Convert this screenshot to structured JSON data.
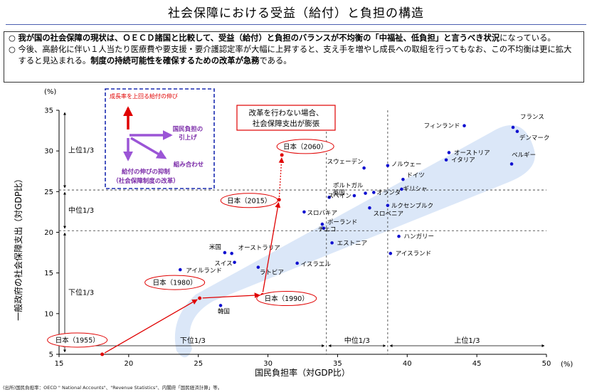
{
  "header": {
    "title": "社会保障における受益（給付）と負担の構造"
  },
  "summary": {
    "bullet": "○",
    "p1": [
      {
        "t": "我が国の社会保障の現状は、ＯＥＣＤ諸国と比較して、",
        "s": "hl"
      },
      {
        "t": "受益（給付）と負担のバランスが不均衡の「中福祉、低負担」と言うべき状況",
        "s": "hl"
      },
      {
        "t": "になっている。",
        "s": ""
      }
    ],
    "p2": [
      {
        "t": "今後、高齢化に伴い１人当たり医療費や要支援・要介護認定率が大幅に上昇すると、支え手を増やし成長への取組を行ってもなお、この不均衡は更に拡大すると見込まれる。",
        "s": ""
      },
      {
        "t": "制度の持続可能性を確保するための改革が急務",
        "s": "hl"
      },
      {
        "t": "である。",
        "s": ""
      }
    ]
  },
  "source_note": "(出所)国民負担率：OECD \" National Accounts\"、\"Revenue Statistics\"、内閣府「国民経済計算」等。",
  "chart_data": {
    "type": "scatter",
    "xlabel": "国民負担率（対GDP比）",
    "ylabel": "一般政府の社会保障支出（対GDP比）",
    "x_unit": "(%)",
    "y_unit": "(%)",
    "xlim": [
      15,
      50
    ],
    "ylim": [
      5,
      35
    ],
    "x_ticks": [
      15,
      20,
      25,
      30,
      35,
      40,
      45,
      50
    ],
    "y_ticks": [
      5,
      10,
      15,
      20,
      25,
      30,
      35
    ],
    "x_tercile_splits": [
      34.2,
      38.6
    ],
    "y_tercile_splits": [
      25.2,
      20.2
    ],
    "x_tercile_labels": [
      "下位1/3",
      "中位1/3",
      "上位1/3"
    ],
    "y_tercile_labels": [
      "上位1/3",
      "中位1/3",
      "下位1/3"
    ],
    "countries": [
      {
        "name": "フランス",
        "x": 47.6,
        "y": 32.9
      },
      {
        "name": "フィンランド",
        "x": 44.1,
        "y": 33.1
      },
      {
        "name": "デンマーク",
        "x": 47.9,
        "y": 32.4
      },
      {
        "name": "オーストリア",
        "x": 43.0,
        "y": 29.8
      },
      {
        "name": "イタリア",
        "x": 42.8,
        "y": 28.9
      },
      {
        "name": "ベルギー",
        "x": 47.5,
        "y": 28.4
      },
      {
        "name": "スウェーデン",
        "x": 36.9,
        "y": 27.9
      },
      {
        "name": "ノルウェー",
        "x": 38.6,
        "y": 28.2
      },
      {
        "name": "ドイツ",
        "x": 39.7,
        "y": 26.5
      },
      {
        "name": "ギリシャ",
        "x": 39.6,
        "y": 25.3
      },
      {
        "name": "ポルトガル",
        "x": 37.0,
        "y": 24.8
      },
      {
        "name": "英国",
        "x": 34.4,
        "y": 24.3
      },
      {
        "name": "オランダ",
        "x": 37.6,
        "y": 24.9
      },
      {
        "name": "スペイン",
        "x": 36.2,
        "y": 24.5
      },
      {
        "name": "ルクセンブルク",
        "x": 38.6,
        "y": 23.3
      },
      {
        "name": "スロバキア",
        "x": 32.6,
        "y": 22.5
      },
      {
        "name": "スロベニア",
        "x": 37.3,
        "y": 23.0
      },
      {
        "name": "ポーランド",
        "x": 33.9,
        "y": 21.0
      },
      {
        "name": "チェコ",
        "x": 34.0,
        "y": 20.5
      },
      {
        "name": "エストニア",
        "x": 34.6,
        "y": 18.7
      },
      {
        "name": "ハンガリー",
        "x": 39.4,
        "y": 19.5
      },
      {
        "name": "アイスランド",
        "x": 38.8,
        "y": 17.4
      },
      {
        "name": "米国",
        "x": 26.9,
        "y": 17.5
      },
      {
        "name": "オーストラリア",
        "x": 27.4,
        "y": 17.4
      },
      {
        "name": "スイス",
        "x": 27.6,
        "y": 16.3
      },
      {
        "name": "ラトビア",
        "x": 29.3,
        "y": 15.7
      },
      {
        "name": "イスラエル",
        "x": 32.1,
        "y": 16.2
      },
      {
        "name": "アイルランド",
        "x": 23.7,
        "y": 15.4
      },
      {
        "name": "韓国",
        "x": 26.6,
        "y": 11.0
      }
    ],
    "japan": [
      {
        "name": "日本（1955）",
        "x": 18.1,
        "y": 5.0
      },
      {
        "name": "日本（1980）",
        "x": 25.1,
        "y": 11.9
      },
      {
        "name": "日本（1990）",
        "x": 29.6,
        "y": 12.3
      },
      {
        "name": "日本（2015）",
        "x": 30.8,
        "y": 24.0
      },
      {
        "name": "日本（2060）",
        "x": 31.0,
        "y": 29.5
      }
    ],
    "callout_projection": [
      "改革を行わない場合、",
      "社会保障支出が膨張"
    ],
    "inset": {
      "title": "成長率を上回る給付の伸び",
      "right_label": [
        "国民負担の",
        "引上げ"
      ],
      "diag_label": "組み合わせ",
      "down_label": [
        "給付の伸びの抑制",
        "（社会保障制度の改革）"
      ]
    }
  },
  "colors": {
    "country_dot": "#1010d0",
    "japan": "#e00000",
    "band": "#dbe7f8",
    "inset_border": "#1a2bb0",
    "inset_text": "#7a2aa8",
    "inset_arrow": "#9b55d6"
  }
}
